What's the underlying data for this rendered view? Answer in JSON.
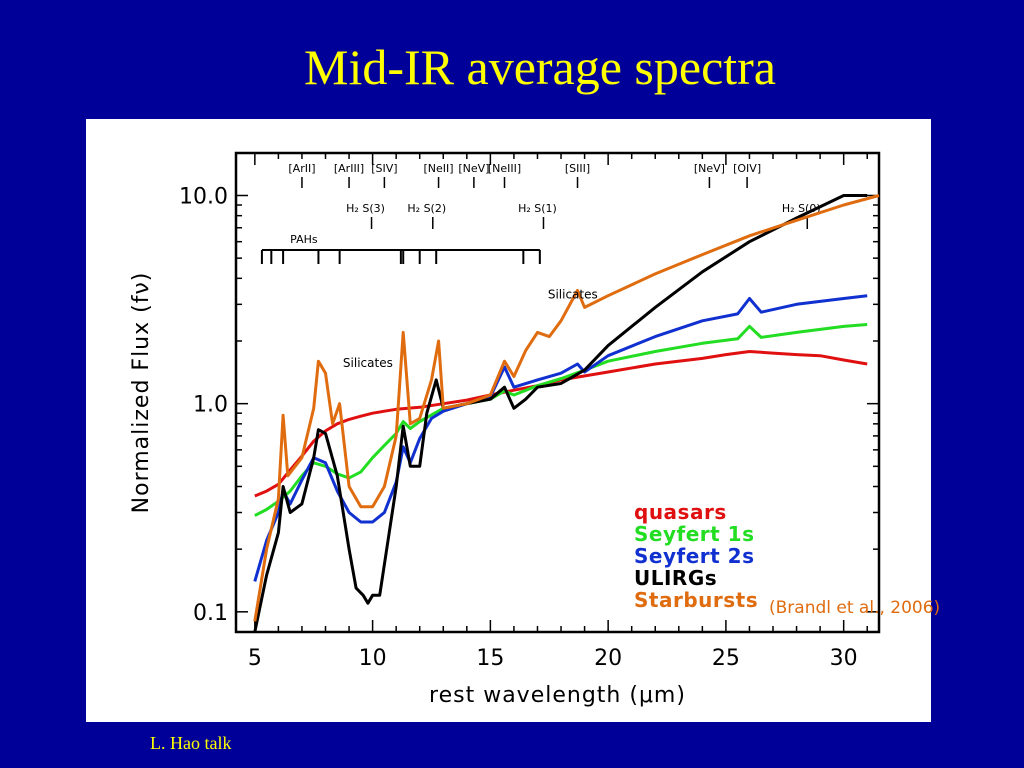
{
  "slide": {
    "title": "Mid-IR average spectra",
    "footer": "L. Hao talk",
    "citation": "(Brandl et al., 2006)"
  },
  "colors": {
    "background": "#000099",
    "title": "#ffff00",
    "quasars": "#e01010",
    "seyfert1": "#22dd22",
    "seyfert2": "#1030d0",
    "ulirgs": "#000000",
    "starbursts": "#e06c10"
  },
  "chart_data": {
    "type": "line",
    "xlabel": "rest wavelength (μm)",
    "ylabel": "Normalized Flux (fν)",
    "xlim": [
      4.2,
      31.5
    ],
    "ylim": [
      0.08,
      16
    ],
    "yscale": "log",
    "xticks": [
      5,
      10,
      15,
      20,
      25,
      30
    ],
    "yticks": [
      {
        "value": 0.1,
        "label": "0.1"
      },
      {
        "value": 1.0,
        "label": "1.0"
      },
      {
        "value": 10.0,
        "label": "10.0"
      }
    ],
    "grid": false,
    "legend": {
      "position": "lower-right",
      "entries": [
        {
          "label": "quasars",
          "color": "#e01010"
        },
        {
          "label": "Seyfert 1s",
          "color": "#22dd22"
        },
        {
          "label": "Seyfert 2s",
          "color": "#1030d0"
        },
        {
          "label": "ULIRGs",
          "color": "#000000"
        },
        {
          "label": "Starbursts",
          "color": "#e06c10"
        }
      ]
    },
    "line_markers": [
      {
        "label": "[ArII]",
        "x": 7.0
      },
      {
        "label": "[ArIII]",
        "x": 9.0
      },
      {
        "label": "[SIV]",
        "x": 10.5
      },
      {
        "label": "[NeII]",
        "x": 12.8
      },
      {
        "label": "[NeV]",
        "x": 14.3
      },
      {
        "label": "[NeIII]",
        "x": 15.6
      },
      {
        "label": "[SIII]",
        "x": 18.7
      },
      {
        "label": "[NeV]",
        "x": 24.3
      },
      {
        "label": "[OIV]",
        "x": 25.9
      }
    ],
    "h2_markers": [
      {
        "label": "H₂ S(3)",
        "x": 9.7
      },
      {
        "label": "H₂ S(2)",
        "x": 12.3
      },
      {
        "label": "H₂ S(1)",
        "x": 17.0
      },
      {
        "label": "H₂ S(0)",
        "x": 28.2
      }
    ],
    "pah": {
      "label": "PAHs",
      "x_start": 5.3,
      "x_end": 17.1,
      "ticks": [
        5.3,
        5.7,
        6.2,
        7.7,
        8.6,
        11.2,
        11.3,
        12.0,
        12.7,
        16.4,
        17.1
      ]
    },
    "annotations": [
      {
        "text": "Silicates",
        "x": 9.8,
        "y": 1.5
      },
      {
        "text": "Silicates",
        "x": 18.5,
        "y": 3.2
      }
    ],
    "series": [
      {
        "name": "quasars",
        "color": "#e01010",
        "x": [
          5.0,
          5.5,
          6.0,
          6.5,
          7.0,
          7.5,
          8.0,
          8.5,
          9.0,
          9.5,
          10.0,
          10.5,
          11.0,
          11.5,
          12.0,
          13.0,
          14.0,
          15.0,
          16.0,
          17.0,
          18.0,
          20.0,
          22.0,
          24.0,
          25.0,
          26.0,
          27.0,
          28.0,
          29.0,
          30.0,
          31.0
        ],
        "y": [
          0.36,
          0.38,
          0.41,
          0.48,
          0.56,
          0.66,
          0.74,
          0.8,
          0.84,
          0.87,
          0.9,
          0.92,
          0.94,
          0.95,
          0.96,
          1.0,
          1.04,
          1.1,
          1.16,
          1.22,
          1.3,
          1.42,
          1.55,
          1.65,
          1.72,
          1.78,
          1.75,
          1.72,
          1.7,
          1.62,
          1.55
        ]
      },
      {
        "name": "Seyfert 1s",
        "color": "#22dd22",
        "x": [
          5.0,
          5.5,
          6.0,
          6.5,
          7.0,
          7.5,
          8.0,
          8.5,
          9.0,
          9.5,
          10.0,
          10.5,
          11.0,
          11.3,
          11.6,
          12.0,
          13.0,
          14.0,
          15.0,
          15.6,
          16.0,
          17.0,
          18.0,
          19.0,
          20.0,
          22.0,
          24.0,
          25.5,
          26.0,
          26.5,
          28.0,
          30.0,
          31.0
        ],
        "y": [
          0.29,
          0.31,
          0.34,
          0.38,
          0.45,
          0.52,
          0.5,
          0.46,
          0.44,
          0.47,
          0.55,
          0.63,
          0.72,
          0.82,
          0.76,
          0.82,
          0.95,
          1.0,
          1.05,
          1.15,
          1.1,
          1.22,
          1.32,
          1.45,
          1.6,
          1.78,
          1.95,
          2.05,
          2.35,
          2.08,
          2.2,
          2.35,
          2.4
        ]
      },
      {
        "name": "Seyfert 2s",
        "color": "#1030d0",
        "x": [
          5.0,
          5.5,
          6.0,
          6.2,
          6.5,
          7.0,
          7.5,
          8.0,
          8.5,
          9.0,
          9.5,
          10.0,
          10.5,
          11.0,
          11.3,
          11.6,
          12.0,
          12.5,
          13.0,
          14.0,
          15.0,
          15.6,
          16.0,
          17.0,
          18.0,
          18.7,
          19.0,
          20.0,
          22.0,
          24.0,
          25.5,
          26.0,
          26.5,
          28.0,
          30.0,
          31.0
        ],
        "y": [
          0.14,
          0.22,
          0.3,
          0.38,
          0.33,
          0.43,
          0.55,
          0.52,
          0.38,
          0.3,
          0.27,
          0.27,
          0.3,
          0.42,
          0.62,
          0.52,
          0.68,
          0.85,
          0.92,
          1.0,
          1.08,
          1.5,
          1.2,
          1.3,
          1.4,
          1.55,
          1.42,
          1.7,
          2.1,
          2.5,
          2.7,
          3.2,
          2.75,
          3.0,
          3.2,
          3.3
        ]
      },
      {
        "name": "ULIRGs",
        "color": "#000000",
        "x": [
          5.0,
          5.5,
          6.0,
          6.2,
          6.5,
          7.0,
          7.5,
          7.7,
          8.0,
          8.5,
          9.0,
          9.3,
          9.6,
          9.8,
          10.0,
          10.3,
          10.6,
          11.0,
          11.3,
          11.6,
          12.0,
          12.3,
          12.7,
          13.0,
          14.0,
          15.0,
          15.6,
          16.0,
          16.5,
          17.0,
          18.0,
          19.0,
          20.0,
          22.0,
          24.0,
          26.0,
          28.0,
          30.0,
          31.0
        ],
        "y": [
          0.08,
          0.15,
          0.24,
          0.4,
          0.3,
          0.33,
          0.55,
          0.75,
          0.72,
          0.45,
          0.2,
          0.13,
          0.12,
          0.11,
          0.12,
          0.12,
          0.2,
          0.4,
          0.78,
          0.5,
          0.5,
          0.9,
          1.3,
          0.95,
          1.0,
          1.05,
          1.2,
          0.95,
          1.05,
          1.2,
          1.25,
          1.45,
          1.9,
          2.9,
          4.3,
          6.0,
          7.8,
          10.0,
          10.0
        ]
      },
      {
        "name": "Starbursts",
        "color": "#e06c10",
        "x": [
          5.0,
          5.5,
          6.0,
          6.2,
          6.4,
          7.0,
          7.5,
          7.7,
          8.0,
          8.3,
          8.6,
          9.0,
          9.5,
          10.0,
          10.5,
          11.0,
          11.3,
          11.6,
          12.0,
          12.5,
          12.8,
          13.0,
          14.0,
          15.0,
          15.6,
          16.0,
          16.5,
          17.0,
          17.5,
          18.0,
          18.7,
          19.0,
          20.0,
          22.0,
          24.0,
          26.0,
          28.0,
          30.0,
          31.5
        ],
        "y": [
          0.09,
          0.2,
          0.35,
          0.88,
          0.45,
          0.55,
          0.95,
          1.6,
          1.4,
          0.8,
          1.0,
          0.4,
          0.32,
          0.32,
          0.4,
          0.7,
          2.2,
          0.8,
          0.85,
          1.3,
          2.0,
          0.95,
          1.0,
          1.1,
          1.6,
          1.35,
          1.8,
          2.2,
          2.1,
          2.5,
          3.5,
          2.9,
          3.3,
          4.2,
          5.2,
          6.4,
          7.6,
          9.0,
          10.0
        ]
      }
    ]
  }
}
